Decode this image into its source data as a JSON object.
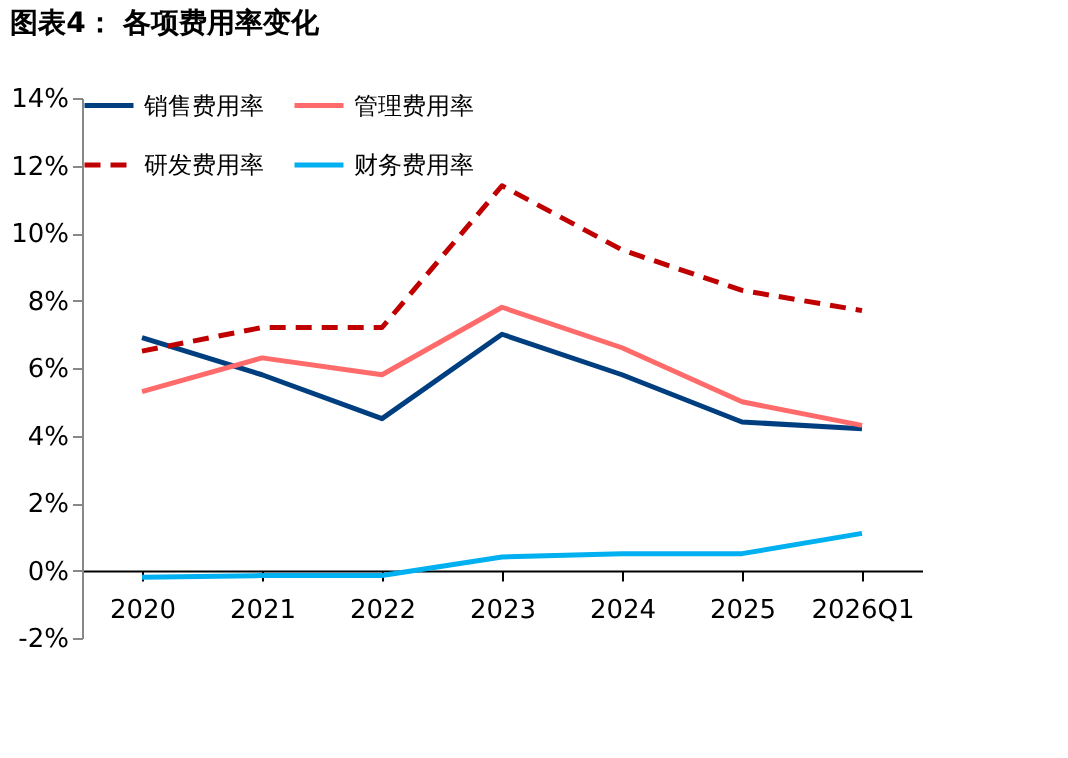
{
  "chart_data": {
    "type": "line",
    "title": "图表4：  各项费用率变化",
    "categories": [
      "2020",
      "2021",
      "2022",
      "2023",
      "2024",
      "2025",
      "2026Q1"
    ],
    "series": [
      {
        "name": "销售费用率",
        "color": "#003f7f",
        "line_style": "solid",
        "values": [
          6.9,
          5.8,
          4.5,
          7.0,
          5.8,
          4.4,
          4.2
        ]
      },
      {
        "name": "管理费用率",
        "color": "#ff6b6b",
        "line_style": "solid",
        "values": [
          5.3,
          6.3,
          5.8,
          7.8,
          6.6,
          5.0,
          4.3
        ]
      },
      {
        "name": "研发费用率",
        "color": "#c00000",
        "line_style": "dashed",
        "values": [
          6.5,
          7.2,
          7.2,
          11.4,
          9.5,
          8.3,
          7.7
        ]
      },
      {
        "name": "财务费用率",
        "color": "#00b0f0",
        "line_style": "solid",
        "values": [
          -0.2,
          -0.15,
          -0.15,
          0.4,
          0.5,
          0.5,
          1.1
        ]
      }
    ],
    "ylim": [
      -2,
      14
    ],
    "yticks": [
      {
        "value": -2,
        "label": "-2%"
      },
      {
        "value": 0,
        "label": "0%"
      },
      {
        "value": 2,
        "label": "2%"
      },
      {
        "value": 4,
        "label": "4%"
      },
      {
        "value": 6,
        "label": "6%"
      },
      {
        "value": 8,
        "label": "8%"
      },
      {
        "value": 10,
        "label": "10%"
      },
      {
        "value": 12,
        "label": "12%"
      },
      {
        "value": 14,
        "label": "14%"
      }
    ],
    "grid": false,
    "legend": "top",
    "marker": "none"
  }
}
